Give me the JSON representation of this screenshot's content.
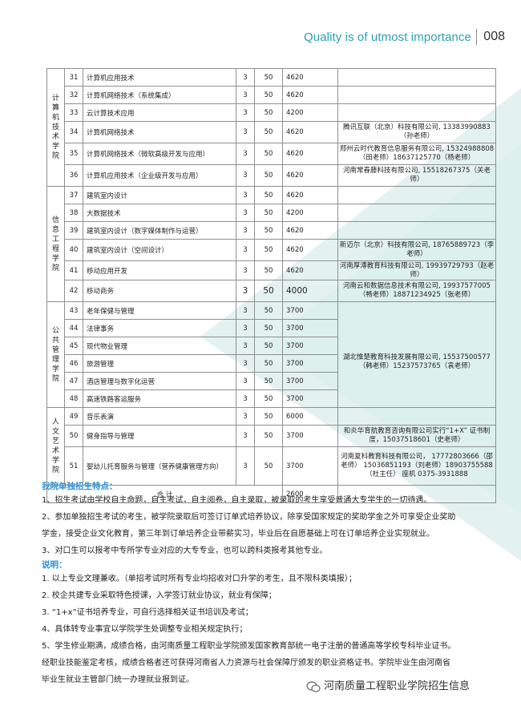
{
  "header": {
    "tagline": "Quality is of utmost importance",
    "page_number": "008"
  },
  "table": {
    "groups": [
      {
        "dept": "计算机技术学院",
        "rows": [
          {
            "no": "31",
            "name": "计算机应用技术",
            "years": "3",
            "plan": "50",
            "fee": "4620",
            "coop": ""
          },
          {
            "no": "32",
            "name": "计算机网络技术（系统集成）",
            "years": "3",
            "plan": "50",
            "fee": "4620",
            "coop": ""
          },
          {
            "no": "33",
            "name": "云计算技术应用",
            "years": "3",
            "plan": "50",
            "fee": "4200",
            "coop": ""
          },
          {
            "no": "34",
            "name": "计算机网络技术",
            "years": "3",
            "plan": "50",
            "fee": "4620",
            "coop": "腾讯互联（北京）科技有限公司,\n13383990883（孙老师）"
          },
          {
            "no": "35",
            "name": "计算机网络技术（微软高级开发与应用）",
            "years": "3",
            "plan": "50",
            "fee": "4620",
            "coop": "郑州云时代教育信息服务有限公司,\n15324988808（田老师）18637125770（杨老师）"
          },
          {
            "no": "36",
            "name": "计算机应用技术（企业级开发与应用）",
            "years": "3",
            "plan": "50",
            "fee": "4620",
            "coop": "河南常春藤科技有限公司,\n15518267375（关老师）"
          }
        ]
      },
      {
        "dept": "信息工程学院",
        "rows": [
          {
            "no": "37",
            "name": "建筑室内设计",
            "years": "3",
            "plan": "50",
            "fee": "4620",
            "coop": ""
          },
          {
            "no": "38",
            "name": "大数据技术",
            "years": "3",
            "plan": "50",
            "fee": "4200",
            "coop": ""
          },
          {
            "no": "39",
            "name": "建筑室内设计（数字媒体制作与运营）",
            "years": "3",
            "plan": "50",
            "fee": "4620",
            "coop": ""
          },
          {
            "no": "40",
            "name": "建筑室内设计（空间设计）",
            "years": "3",
            "plan": "50",
            "fee": "4620",
            "coop": "新迈尔（北京）科技有限公司,\n18765889723（李老师）"
          },
          {
            "no": "41",
            "name": "移动应用开发",
            "years": "3",
            "plan": "50",
            "fee": "4620",
            "coop": "河南厚溥教育科技有限公司,\n19939729793（赵老师）"
          },
          {
            "no": "42",
            "name": "移动商务",
            "years": "3",
            "plan": "50",
            "fee": "4000",
            "coop": "河南云和数据信息技术有限公司,\n19937577005（畅老师）18871234925（张老师）"
          }
        ]
      },
      {
        "dept": "公共管理学院",
        "rows": [
          {
            "no": "43",
            "name": "老年保健与管理",
            "years": "3",
            "plan": "50",
            "fee": "3700",
            "coop": ""
          },
          {
            "no": "44",
            "name": "法律事务",
            "years": "3",
            "plan": "50",
            "fee": "3700",
            "coop": ""
          },
          {
            "no": "45",
            "name": "现代物业管理",
            "years": "3",
            "plan": "50",
            "fee": "3700",
            "coop": ""
          },
          {
            "no": "46",
            "name": "旅游管理",
            "years": "3",
            "plan": "50",
            "fee": "3700",
            "coop": ""
          },
          {
            "no": "47",
            "name": "酒店管理与数字化运营",
            "years": "3",
            "plan": "50",
            "fee": "3700",
            "coop": ""
          },
          {
            "no": "48",
            "name": "高速铁路客运服务",
            "years": "3",
            "plan": "50",
            "fee": "3700",
            "coop": ""
          }
        ],
        "merged_coop": "湖北惟楚教育科技发展有限公司,\n15537500577（韩老师）15237573765（袁老师）"
      },
      {
        "dept": "人文艺术学院",
        "rows": [
          {
            "no": "49",
            "name": "音乐表演",
            "years": "3",
            "plan": "50",
            "fee": "6000",
            "coop": ""
          },
          {
            "no": "50",
            "name": "健身指导与管理",
            "years": "3",
            "plan": "50",
            "fee": "3700",
            "coop": "和炎华育航教育咨询有限公司实行“1+X”\n证书制度，15037518601（史老师）"
          },
          {
            "no": "51",
            "name": "婴幼儿托育服务与管理（营养健康管理方向）",
            "years": "3",
            "plan": "50",
            "fee": "3700",
            "coop": "河南夏科教育科技有限公司，\n17772803666（邵老师）\n15036851193（刘老师）18903755588（杜主任）\n座机 0375-3931888"
          }
        ]
      }
    ],
    "total_label": "合  计",
    "total_value": "2600"
  },
  "features": {
    "title": "我院单独招生特点：",
    "items": [
      "1、招生考试由学校自主命题，自主考试，自主阅卷，自主录取，被录取的考生享受普通大专学生的一切待遇。",
      "2、参加单独招生考试的考生，被学院录取后可签订订单式培养协议，除享受国家规定的奖助学金之外可享受企业奖助",
      "学金，接受企业文化教育，第三年到订单培养企业带薪实习，毕业后在自愿基础上可在订单培养企业实现就业。",
      "3、对口生可以报考中专所学专业对应的大专专业，也可以跨科类报考其他专业。"
    ]
  },
  "notes": {
    "title": "说明：",
    "items": [
      "1. 以上专业文理兼收。（单招考试时所有专业均招收对口升学的考生，且不限科类填报）；",
      "2. 校企共建专业采取特色授课，入学签订就业协议，就业有保障；",
      "3. “1+x”证书培养专业，可自行选择相关证书培训及考试；",
      "4、具体转专业事宜以学院学生处调整专业相关规定执行；",
      "5、学生修业期满，成绩合格，由河南质量工程职业学院颁发国家教育部统一电子注册的普通高等学校专科毕业证书。",
      "经职业技能鉴定考核，成绩合格者还可获得河南省人力资源与社会保障厅颁发的职业资格证书。学院毕业生由河南省",
      "毕业生就业主管部门统一办理就业报到证。"
    ]
  },
  "footer": {
    "watermark": "河南质量工程职业学院招生信息"
  },
  "colors": {
    "accent": "#2c9fb7",
    "title_blue": "#2c8fd1",
    "triangle": "#e4f3f1"
  }
}
